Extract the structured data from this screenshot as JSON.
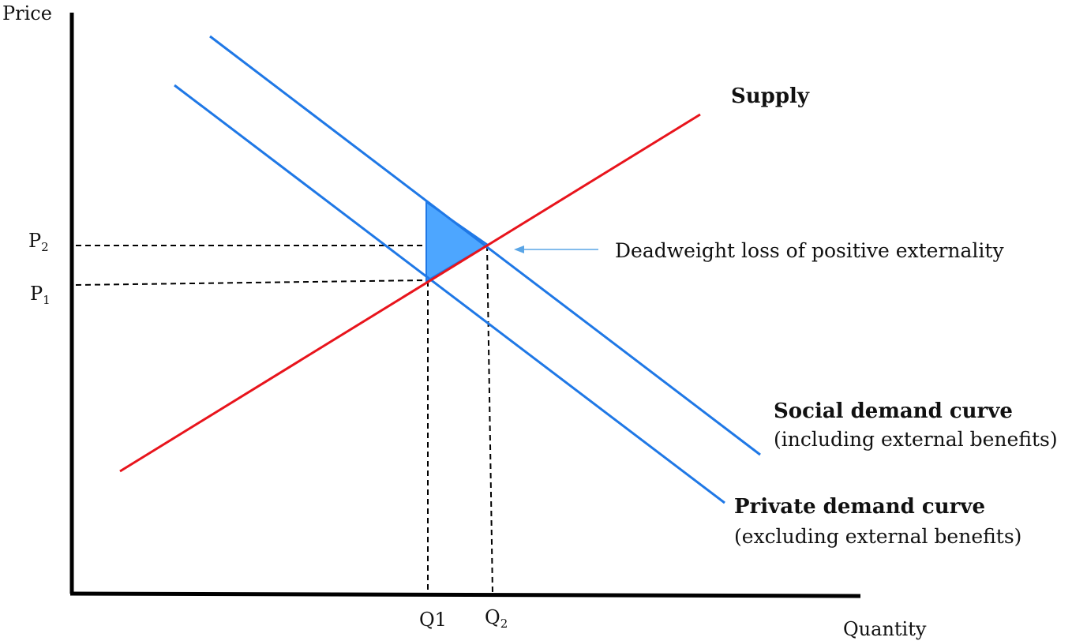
{
  "axes": {
    "y_title": "Price",
    "x_title": "Quantity"
  },
  "ticks": {
    "p2": {
      "main": "P",
      "sub": "2"
    },
    "p1": {
      "main": "P",
      "sub": "1"
    },
    "q1": {
      "main": "Q1",
      "sub": ""
    },
    "q2": {
      "main": "Q",
      "sub": "2"
    }
  },
  "curves": {
    "supply": {
      "title": "Supply",
      "color": "#e8141c"
    },
    "social_demand": {
      "title": "Social demand  curve",
      "subtitle": "(including external benefits)",
      "color": "#1f78e6"
    },
    "private_demand": {
      "title": "Private demand  curve",
      "subtitle": "(excluding external benefits)",
      "color": "#1f78e6"
    }
  },
  "annotation": {
    "text": "Deadweight loss of positive externality",
    "fill": "#4da6ff",
    "arrow_color": "#5aa5e6"
  }
}
